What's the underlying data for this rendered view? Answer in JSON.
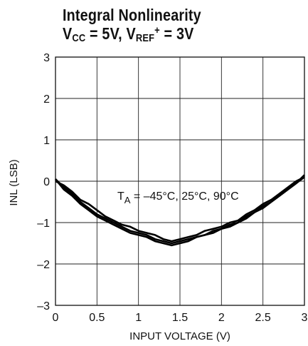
{
  "chart_data": {
    "type": "line",
    "title": "Integral Nonlinearity",
    "subtitle": {
      "v": "V",
      "cc": "CC",
      "mid": " = 5V, V",
      "ref": "REF",
      "plus": "+",
      "end": " = 3V"
    },
    "xlabel": "INPUT VOLTAGE (V)",
    "ylabel": "INL (LSB)",
    "xlim": [
      0,
      3
    ],
    "ylim": [
      -3,
      3
    ],
    "xticks": [
      0,
      0.5,
      1,
      1.5,
      2,
      2.5,
      3
    ],
    "xtick_labels": [
      "0",
      "0.5",
      "1",
      "1.5",
      "2",
      "2.5",
      "3"
    ],
    "yticks": [
      -3,
      -2,
      -1,
      0,
      1,
      2,
      3
    ],
    "ytick_labels": [
      "–3",
      "–2",
      "–1",
      "0",
      "1",
      "2",
      "3"
    ],
    "grid": true,
    "annotation": {
      "t": "T",
      "a": "A",
      "text": " = –45°C, 25°C, 90°C"
    },
    "series": [
      {
        "x": [
          0,
          0.1,
          0.2,
          0.3,
          0.4,
          0.5,
          0.6,
          0.7,
          0.8,
          0.9,
          1.0,
          1.1,
          1.2,
          1.3,
          1.4,
          1.5,
          1.6,
          1.7,
          1.8,
          1.9,
          2.0,
          2.1,
          2.2,
          2.3,
          2.4,
          2.5,
          2.6,
          2.7,
          2.8,
          2.9,
          3.0
        ],
        "values": [
          0.05,
          -0.15,
          -0.3,
          -0.5,
          -0.65,
          -0.8,
          -0.9,
          -1.0,
          -1.1,
          -1.2,
          -1.25,
          -1.3,
          -1.4,
          -1.45,
          -1.5,
          -1.45,
          -1.4,
          -1.35,
          -1.3,
          -1.2,
          -1.15,
          -1.05,
          -1.0,
          -0.9,
          -0.75,
          -0.65,
          -0.5,
          -0.35,
          -0.2,
          -0.05,
          0.1
        ]
      },
      {
        "x": [
          0,
          0.1,
          0.2,
          0.3,
          0.4,
          0.5,
          0.6,
          0.7,
          0.8,
          0.9,
          1.0,
          1.1,
          1.2,
          1.3,
          1.4,
          1.5,
          1.6,
          1.7,
          1.8,
          1.9,
          2.0,
          2.1,
          2.2,
          2.3,
          2.4,
          2.5,
          2.6,
          2.7,
          2.8,
          2.9,
          3.0
        ],
        "values": [
          0.0,
          -0.1,
          -0.25,
          -0.45,
          -0.55,
          -0.7,
          -0.85,
          -0.95,
          -1.05,
          -1.1,
          -1.2,
          -1.25,
          -1.3,
          -1.4,
          -1.45,
          -1.4,
          -1.35,
          -1.3,
          -1.2,
          -1.15,
          -1.1,
          -1.0,
          -0.95,
          -0.8,
          -0.7,
          -0.55,
          -0.45,
          -0.3,
          -0.15,
          0.0,
          0.1
        ]
      },
      {
        "x": [
          0,
          0.1,
          0.2,
          0.3,
          0.4,
          0.5,
          0.6,
          0.7,
          0.8,
          0.9,
          1.0,
          1.1,
          1.2,
          1.3,
          1.4,
          1.5,
          1.6,
          1.7,
          1.8,
          1.9,
          2.0,
          2.1,
          2.2,
          2.3,
          2.4,
          2.5,
          2.6,
          2.7,
          2.8,
          2.9,
          3.0
        ],
        "values": [
          0.05,
          -0.2,
          -0.35,
          -0.55,
          -0.7,
          -0.85,
          -0.95,
          -1.05,
          -1.15,
          -1.25,
          -1.3,
          -1.35,
          -1.45,
          -1.5,
          -1.55,
          -1.5,
          -1.45,
          -1.35,
          -1.3,
          -1.25,
          -1.15,
          -1.1,
          -1.0,
          -0.85,
          -0.75,
          -0.6,
          -0.5,
          -0.35,
          -0.2,
          -0.05,
          0.15
        ]
      }
    ]
  }
}
